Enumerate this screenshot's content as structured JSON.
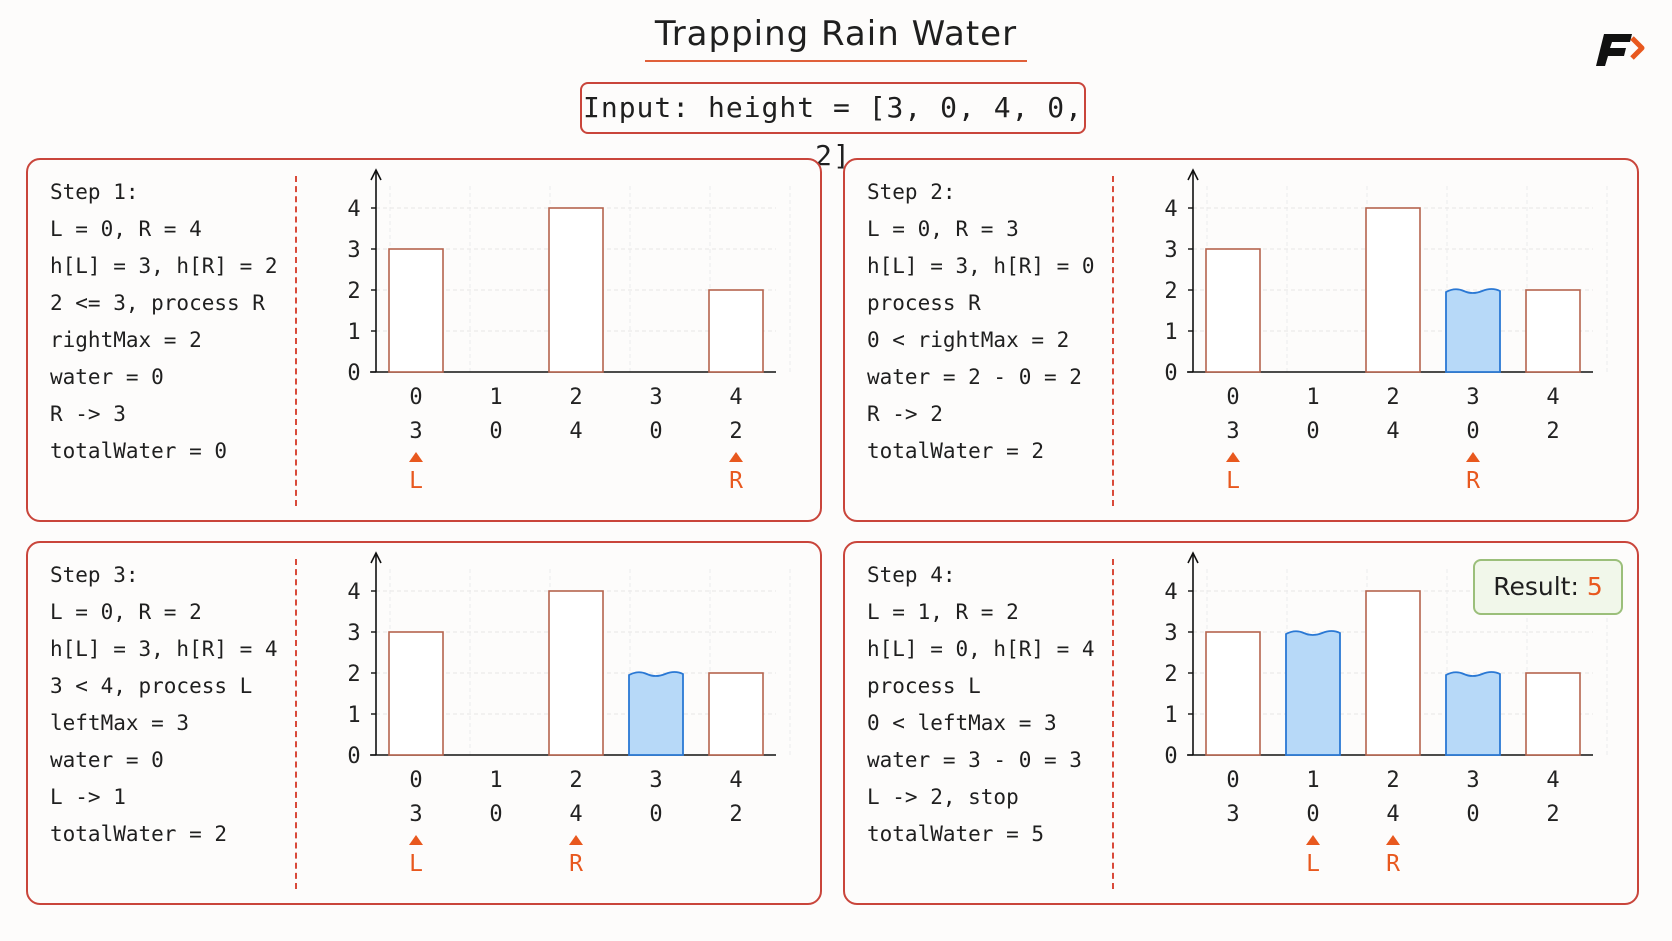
{
  "title": "Trapping Rain Water",
  "input_label": "Input: height = [3, 0, 4, 0, 2]",
  "brand_logo": "fb-logo-icon",
  "colors": {
    "frame": "#c9453b",
    "bar_edge": "#b5644e",
    "water_fill": "#b7d9f8",
    "water_edge": "#2a78d4",
    "pointer": "#e8581e",
    "result_border": "#9bbf7a",
    "result_bg": "#f1f7ea"
  },
  "result": {
    "label": "Result:",
    "value": "5"
  },
  "steps": [
    {
      "lines": [
        "Step 1:",
        "L = 0, R = 4",
        "h[L] = 3, h[R] = 2",
        "2 <= 3, process R",
        "rightMax = 2",
        "water = 0",
        "R -> 3",
        "totalWater = 0"
      ],
      "heights": [
        3,
        0,
        4,
        0,
        2
      ],
      "water": [
        0,
        0,
        0,
        0,
        0
      ],
      "L": 0,
      "R": 4
    },
    {
      "lines": [
        "Step 2:",
        "L = 0, R = 3",
        "h[L] = 3, h[R] = 0",
        "process R",
        "0 < rightMax = 2",
        "water = 2 - 0 = 2",
        "R -> 2",
        "totalWater = 2"
      ],
      "heights": [
        3,
        0,
        4,
        0,
        2
      ],
      "water": [
        0,
        0,
        0,
        2,
        0
      ],
      "L": 0,
      "R": 3
    },
    {
      "lines": [
        "Step 3:",
        "L = 0, R = 2",
        "h[L] = 3, h[R] = 4",
        "3 < 4, process L",
        "leftMax = 3",
        "water = 0",
        "L -> 1",
        "totalWater = 2"
      ],
      "heights": [
        3,
        0,
        4,
        0,
        2
      ],
      "water": [
        0,
        0,
        0,
        2,
        0
      ],
      "L": 0,
      "R": 2
    },
    {
      "lines": [
        "Step 4:",
        "L = 1, R = 2",
        "h[L] = 0, h[R] = 4",
        "process L",
        "0 < leftMax = 3",
        "water = 3 - 0 = 3",
        "L -> 2, stop",
        "totalWater = 5"
      ],
      "heights": [
        3,
        0,
        4,
        0,
        2
      ],
      "water": [
        0,
        3,
        0,
        2,
        0
      ],
      "L": 1,
      "R": 2
    }
  ],
  "chart_data": {
    "type": "bar",
    "categories": [
      "0",
      "1",
      "2",
      "3",
      "4"
    ],
    "y_ticks": [
      "0",
      "1",
      "2",
      "3",
      "4"
    ],
    "ylim": [
      0,
      4
    ],
    "grid": true,
    "pointer_labels": {
      "left": "L",
      "right": "R"
    }
  }
}
